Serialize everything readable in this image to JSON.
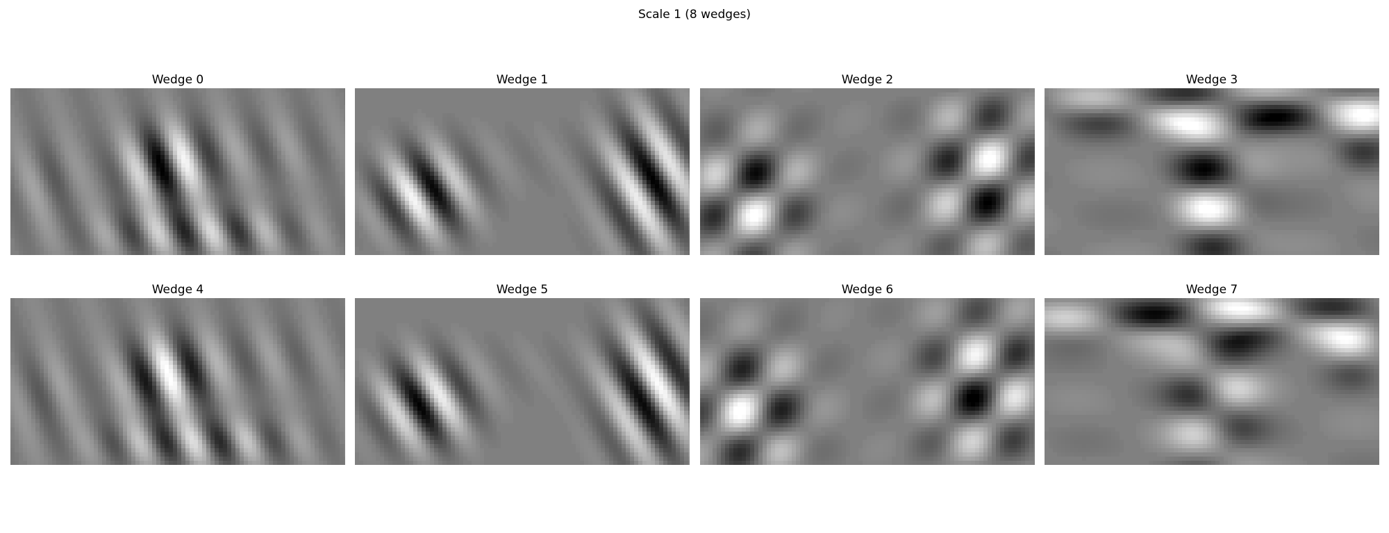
{
  "figure": {
    "title": "Scale 1 (8 wedges)"
  },
  "panels": [
    {
      "title": "Wedge 0",
      "angle": -20,
      "freq": 0.085,
      "blobs": [
        [
          0.46,
          0.45,
          0.13,
          0.22,
          1.0
        ],
        [
          0.55,
          0.85,
          0.28,
          0.14,
          0.65
        ],
        [
          0.1,
          0.55,
          0.1,
          0.25,
          0.25
        ],
        [
          0.75,
          0.35,
          0.2,
          0.2,
          0.2
        ]
      ],
      "mid": 0.2,
      "seed": 1
    },
    {
      "title": "Wedge 1",
      "angle": -30,
      "freq": 0.09,
      "blobs": [
        [
          0.2,
          0.62,
          0.14,
          0.26,
          1.0
        ],
        [
          0.88,
          0.55,
          0.14,
          0.42,
          1.0
        ],
        [
          0.5,
          0.4,
          0.25,
          0.2,
          0.08
        ]
      ],
      "mid": 0.0,
      "seed": 2
    },
    {
      "title": "Wedge 2",
      "angle": 45,
      "freq": 0.07,
      "blobs": [
        [
          0.14,
          0.65,
          0.16,
          0.38,
          1.0
        ],
        [
          0.84,
          0.52,
          0.17,
          0.45,
          1.0
        ]
      ],
      "cross": -45,
      "mid": 0.15,
      "seed": 3
    },
    {
      "title": "Wedge 3",
      "angle": -70,
      "freq": 0.06,
      "blobs": [
        [
          0.55,
          0.12,
          0.6,
          0.14,
          1.0
        ],
        [
          0.5,
          0.6,
          0.12,
          0.45,
          1.0
        ],
        [
          0.92,
          0.3,
          0.1,
          0.2,
          0.6
        ]
      ],
      "cross": 60,
      "mid": 0.25,
      "seed": 4
    },
    {
      "title": "Wedge 4",
      "angle": -20,
      "freq": 0.085,
      "blobs": [
        [
          0.46,
          0.45,
          0.13,
          0.22,
          1.0
        ],
        [
          0.55,
          0.85,
          0.28,
          0.14,
          0.65
        ],
        [
          0.1,
          0.55,
          0.1,
          0.25,
          0.25
        ],
        [
          0.75,
          0.35,
          0.2,
          0.2,
          0.2
        ]
      ],
      "mid": 0.2,
      "seed": 5
    },
    {
      "title": "Wedge 5",
      "angle": -30,
      "freq": 0.09,
      "blobs": [
        [
          0.2,
          0.62,
          0.14,
          0.26,
          1.0
        ],
        [
          0.88,
          0.55,
          0.14,
          0.42,
          1.0
        ],
        [
          0.5,
          0.4,
          0.25,
          0.2,
          0.08
        ]
      ],
      "mid": 0.0,
      "seed": 6
    },
    {
      "title": "Wedge 6",
      "angle": 45,
      "freq": 0.07,
      "blobs": [
        [
          0.14,
          0.65,
          0.16,
          0.38,
          1.0
        ],
        [
          0.84,
          0.52,
          0.17,
          0.45,
          1.0
        ]
      ],
      "cross": -45,
      "mid": 0.15,
      "seed": 7
    },
    {
      "title": "Wedge 7",
      "angle": -70,
      "freq": 0.06,
      "blobs": [
        [
          0.55,
          0.12,
          0.6,
          0.14,
          1.0
        ],
        [
          0.5,
          0.6,
          0.12,
          0.45,
          1.0
        ],
        [
          0.92,
          0.3,
          0.1,
          0.2,
          0.6
        ]
      ],
      "cross": 60,
      "mid": 0.25,
      "seed": 8
    }
  ]
}
